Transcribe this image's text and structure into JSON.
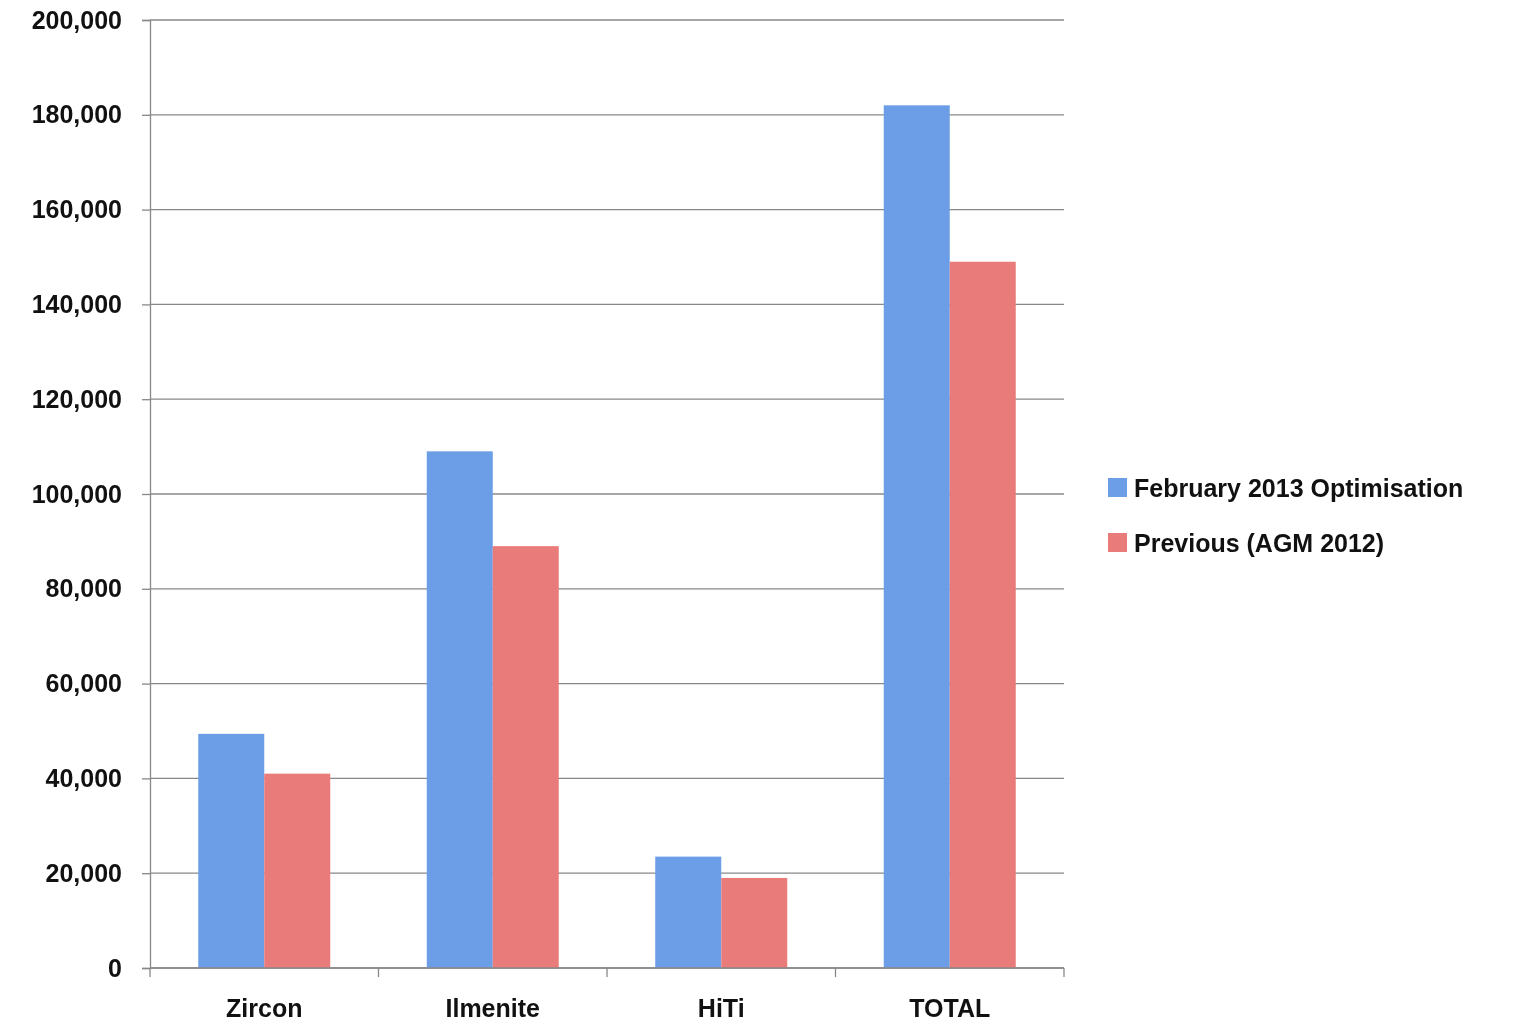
{
  "chart_data": {
    "type": "bar",
    "categories": [
      "Zircon",
      "Ilmenite",
      "HiTi",
      "TOTAL"
    ],
    "series": [
      {
        "name": "February 2013 Optimisation",
        "color": "#6b9ee6",
        "values": [
          49400,
          109000,
          23500,
          182000
        ]
      },
      {
        "name": "Previous (AGM 2012)",
        "color": "#e97c7a",
        "values": [
          41000,
          89000,
          19000,
          149000
        ]
      }
    ],
    "ylim": [
      0,
      200000
    ],
    "yticks": [
      {
        "value": 0,
        "label": "0"
      },
      {
        "value": 20000,
        "label": "20,000"
      },
      {
        "value": 40000,
        "label": "40,000"
      },
      {
        "value": 60000,
        "label": "60,000"
      },
      {
        "value": 80000,
        "label": "80,000"
      },
      {
        "value": 100000,
        "label": "100,000"
      },
      {
        "value": 120000,
        "label": "120,000"
      },
      {
        "value": 140000,
        "label": "140,000"
      },
      {
        "value": 160000,
        "label": "160,000"
      },
      {
        "value": 180000,
        "label": "180,000"
      },
      {
        "value": 200000,
        "label": "200,000"
      }
    ],
    "grid": "y",
    "legend": "right"
  }
}
